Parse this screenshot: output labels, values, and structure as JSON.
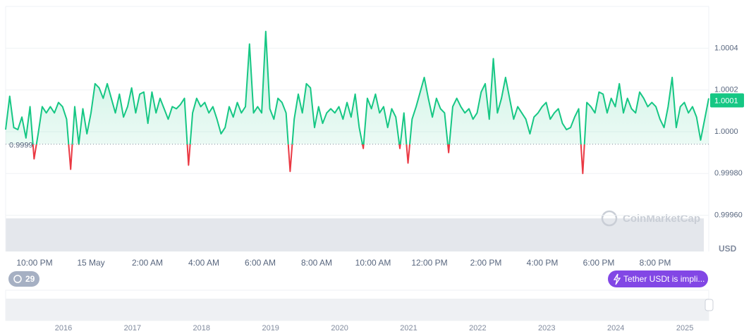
{
  "chart_data": {
    "type": "line",
    "series": [
      {
        "color": "#16c784",
        "below_color": "#ea3943",
        "values": [
          1.00001,
          1.00017,
          1.00002,
          1.00001,
          1.00007,
          0.99997,
          1.00012,
          0.99987,
          0.99999,
          1.00012,
          1.00009,
          1.00012,
          1.00009,
          1.00014,
          1.00012,
          1.00006,
          0.99982,
          1.00012,
          0.99994,
          1.00011,
          0.99999,
          1.00009,
          1.00023,
          1.00021,
          1.00016,
          1.00023,
          1.00016,
          1.00009,
          1.00018,
          1.00007,
          1.00012,
          1.00021,
          1.00009,
          1.00018,
          1.00019,
          1.00004,
          1.00019,
          1.00009,
          1.00016,
          1.00011,
          1.00006,
          1.00012,
          1.00011,
          1.00013,
          1.00016,
          0.99984,
          1.00009,
          1.00016,
          1.00012,
          1.00014,
          1.00009,
          1.00012,
          1.00006,
          0.99999,
          1.00002,
          1.00012,
          1.00007,
          1.00014,
          1.00009,
          1.00012,
          1.00042,
          1.00009,
          1.00012,
          1.00009,
          1.00048,
          1.00011,
          1.00006,
          1.00016,
          1.00014,
          1.00009,
          0.99981,
          1.00006,
          1.00018,
          1.00009,
          1.00023,
          1.00021,
          1.00002,
          1.00012,
          1.00004,
          1.00009,
          1.00011,
          1.00009,
          1.00012,
          1.00006,
          1.00014,
          1.00007,
          1.00018,
          1.00002,
          0.99992,
          1.00016,
          1.00011,
          1.00018,
          1.00009,
          1.00012,
          1.00002,
          1.00011,
          1.00007,
          0.99992,
          1.00009,
          0.99985,
          1.00006,
          1.00012,
          1.00019,
          1.00026,
          1.00016,
          1.00007,
          1.00016,
          1.00011,
          1.00009,
          0.9999,
          1.00012,
          1.00016,
          1.00012,
          1.00009,
          1.00011,
          1.00006,
          1.00009,
          1.00019,
          1.00023,
          1.00006,
          1.00035,
          1.00009,
          1.00016,
          1.00026,
          1.00016,
          1.00006,
          1.00012,
          1.00009,
          1.00006,
          0.99999,
          1.00007,
          1.00009,
          1.00012,
          1.00014,
          1.00006,
          1.00009,
          1.00011,
          1.00004,
          1.00001,
          1.00002,
          1.00007,
          1.00011,
          0.9998,
          1.00014,
          1.00012,
          1.00009,
          1.00019,
          1.00018,
          1.00009,
          1.00016,
          1.00012,
          1.00023,
          1.00009,
          1.00016,
          1.00011,
          1.00009,
          1.00019,
          1.00016,
          1.00012,
          1.00014,
          1.00012,
          1.00006,
          1.00002,
          1.00012,
          1.00026,
          1.00002,
          1.00012,
          1.00014,
          1.00009,
          1.00012,
          1.00007,
          0.99996,
          1.00006,
          1.00016
        ]
      }
    ],
    "baseline": {
      "value": 0.99994,
      "label": "0.9999"
    },
    "current": {
      "value": 1.00015,
      "label": "1.0001"
    },
    "ylim": [
      0.9996,
      1.0006
    ],
    "yticks": [
      1.0004,
      1.0002,
      {
        "value": 1,
        "label": "1.0000"
      },
      {
        "value": 0.9998,
        "label": "0.99980"
      },
      {
        "value": 0.9996,
        "label": "0.99960"
      }
    ],
    "grid": true,
    "x_labels": [
      "10:00 PM",
      "15 May",
      "2:00 AM",
      "4:00 AM",
      "6:00 AM",
      "8:00 AM",
      "10:00 AM",
      "12:00 PM",
      "2:00 PM",
      "4:00 PM",
      "6:00 PM",
      "8:00 PM"
    ],
    "currency": "USD",
    "watermark": "CoinMarketCap"
  },
  "navigator": {
    "years": [
      "2016",
      "2017",
      "2018",
      "2019",
      "2020",
      "2021",
      "2022",
      "2023",
      "2024",
      "2025"
    ]
  },
  "events_count": 29,
  "notice": "Tether USDt is impli..."
}
